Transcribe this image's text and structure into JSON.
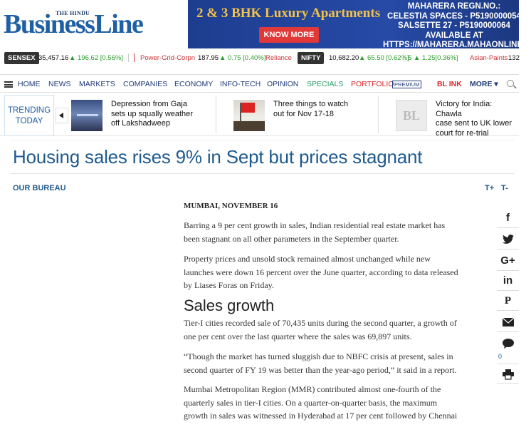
{
  "header": {
    "brand_small": "THE HINDU",
    "brand": "BusinessLine"
  },
  "ad": {
    "headline": "2 & 3 BHK Luxury Apartments",
    "cta": "KNOW MORE",
    "lines": [
      "MAHARERA REGN.NO.:",
      "CELESTIA SPACES - P5190000054",
      "SALSETTE 27 - P5190000064",
      "AVAILABLE AT",
      "HTTPS://MAHARERA.MAHAONLINE.G"
    ]
  },
  "ticker": {
    "sensex_label": "SENSEX",
    "sensex_value": "35,457.16",
    "sensex_change": "▲ 196.62 [0.56%]",
    "stock1_name": "Power-Grid-Corpn",
    "stock1_value": "187.95",
    "stock1_change": "▲ 0.75 [0.40%]",
    "stock2_name": "Reliance",
    "nifty_label": "NIFTY",
    "nifty_value": "10,682.20",
    "nifty_change": "▲ 65.50 [0.62%]",
    "stock3_change": "5 ▲ 1.25[0.36%]",
    "stock4_name": "Asian-Paints",
    "stock4_value": "132"
  },
  "nav": {
    "items": [
      "HOME",
      "NEWS",
      "MARKETS",
      "COMPANIES",
      "ECONOMY",
      "INFO-TECH",
      "OPINION",
      "SPECIALS",
      "PORTFOLIO",
      "BL INK",
      "MORE ▾"
    ],
    "premium": "PREMIUM"
  },
  "trending": {
    "label_line1": "TRENDING",
    "label_line2": "TODAY",
    "items": [
      {
        "lines": [
          "Depression from Gaja",
          "sets up squally weather",
          "off Lakshadweep"
        ]
      },
      {
        "lines": [
          "Three things to watch",
          "out for Nov 17-18"
        ]
      },
      {
        "lines": [
          "Victory for India: Chawla",
          "case sent to UK lower",
          "court for re-trial"
        ]
      }
    ],
    "bl_placeholder": "BL"
  },
  "article": {
    "headline": "Housing sales rises 9% in Sept but prices stagnant",
    "byline": "OUR BUREAU",
    "font_plus": "T+",
    "font_minus": "T-",
    "dateline": "MUMBAI, NOVEMBER 16",
    "p1": [
      "Barring a 9 per cent growth in sales, Indian residential real estate market has",
      "been stagnant on all other parameters in the September quarter."
    ],
    "p2": [
      "Property prices and unsold stock remained almost unchanged while new",
      "launches were down 16 percent over the June quarter, according to data released",
      "by Liases Foras on Friday."
    ],
    "subhead": "Sales growth",
    "p3": [
      "Tier-I cities recorded sale of 70,435 units during the second quarter, a growth of",
      "one per cent over the last quarter where the sales was 69,897 units."
    ],
    "p4": [
      "“Though the market has turned sluggish due to NBFC crisis at present, sales in",
      "second quarter of FY 19 was better than the year-ago period,” it said in a report."
    ],
    "p5": [
      "Mumbai Metropolitan Region (MMR) contributed almost one-fourth of the",
      "quarterly sales in tier-I cities. On a quarter-on-quarter basis, the maximum",
      "growth in sales was witnessed in Hyderabad at 17 per cent followed by Chennai"
    ]
  },
  "share": {
    "facebook": "f",
    "twitter": "t",
    "googleplus": "G+",
    "linkedin": "in",
    "pinterest": "P",
    "comment_count": "0"
  },
  "colors": {
    "brand_blue": "#1f5fa3",
    "headline_blue": "#1f5a8f",
    "ad_bg": "#264aa6",
    "ad_gold": "#f2c24a",
    "up_green": "#2a9d2a",
    "red": "#d8262a"
  }
}
